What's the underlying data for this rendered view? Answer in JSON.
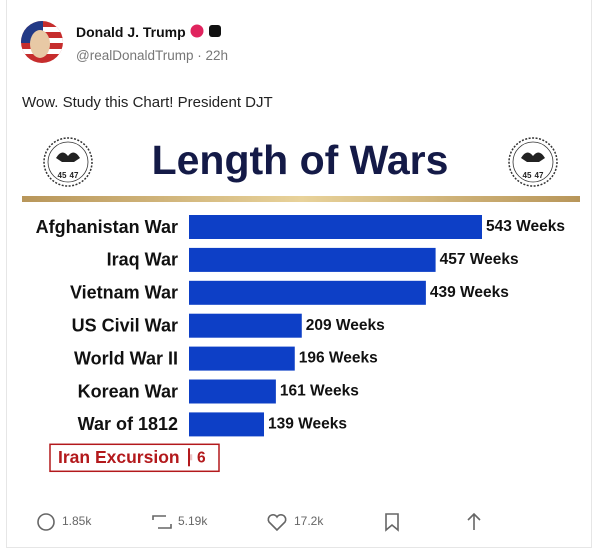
{
  "post": {
    "author": "Donald J. Trump",
    "handle": "@realDonaldTrump",
    "time": "22h",
    "text": "Wow. Study this Chart! President DJT",
    "stats": {
      "replies": "1.85k",
      "reposts": "5.19k",
      "likes": "17.2k"
    }
  },
  "chart_data": {
    "type": "hbar",
    "title": "Length of Wars",
    "seal_numbers": [
      "45",
      "47"
    ],
    "categories": [
      "Afghanistan War",
      "Iraq War",
      "Vietnam War",
      "US Civil War",
      "World War II",
      "Korean War",
      "War of 1812",
      "Iran Excursion"
    ],
    "values": [
      543,
      457,
      439,
      209,
      196,
      161,
      139,
      6
    ],
    "value_labels": [
      "543 Weeks",
      "457 Weeks",
      "439 Weeks",
      "209 Weeks",
      "196 Weeks",
      "161 Weeks",
      "139 Weeks",
      "6"
    ],
    "colors": [
      "#0d3fc6",
      "#0d3fc6",
      "#0d3fc6",
      "#0d3fc6",
      "#0d3fc6",
      "#0d3fc6",
      "#0d3fc6",
      "#b3191c"
    ],
    "xlim": [
      0,
      543
    ]
  }
}
